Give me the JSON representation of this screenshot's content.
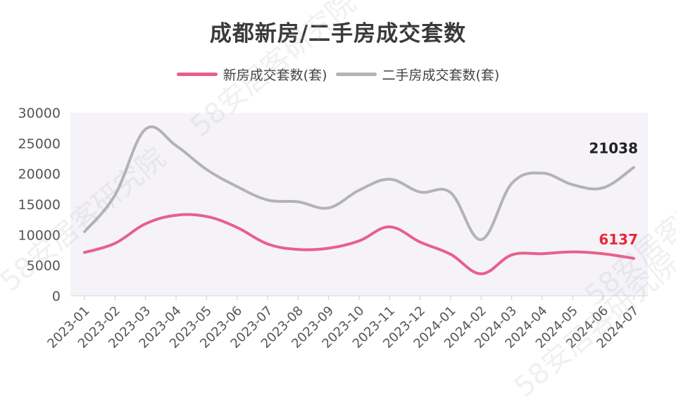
{
  "chart_data": {
    "type": "line",
    "title": "成都新房/二手房成交套数",
    "xlabel": "",
    "ylabel": "",
    "ylim": [
      0,
      30000
    ],
    "yticks": [
      0,
      5000,
      10000,
      15000,
      20000,
      25000,
      30000
    ],
    "categories": [
      "2023-01",
      "2023-02",
      "2023-03",
      "2023-04",
      "2023-05",
      "2023-06",
      "2023-07",
      "2023-08",
      "2023-09",
      "2023-10",
      "2023-11",
      "2023-12",
      "2024-01",
      "2024-02",
      "2024-03",
      "2024-04",
      "2024-05",
      "2024-06",
      "2024-07"
    ],
    "series": [
      {
        "name": "新房成交套数(套)",
        "color": "#e8608a",
        "values": [
          7100,
          8600,
          11800,
          13200,
          13000,
          11200,
          8500,
          7600,
          7800,
          9000,
          11300,
          8800,
          6800,
          3600,
          6700,
          6900,
          7200,
          6900,
          6137
        ],
        "end_label": "6137",
        "end_label_color": "#e8283a"
      },
      {
        "name": "二手房成交套数(套)",
        "color": "#b3b3b3",
        "values": [
          10500,
          16500,
          27300,
          24600,
          20700,
          17900,
          15700,
          15400,
          14400,
          17300,
          19100,
          17000,
          16900,
          9200,
          18400,
          20100,
          18200,
          17700,
          21038
        ],
        "end_label": "21038",
        "end_label_color": "#222222"
      }
    ],
    "grid": false,
    "legend": "top-center",
    "watermark": "58安居客研究院"
  }
}
